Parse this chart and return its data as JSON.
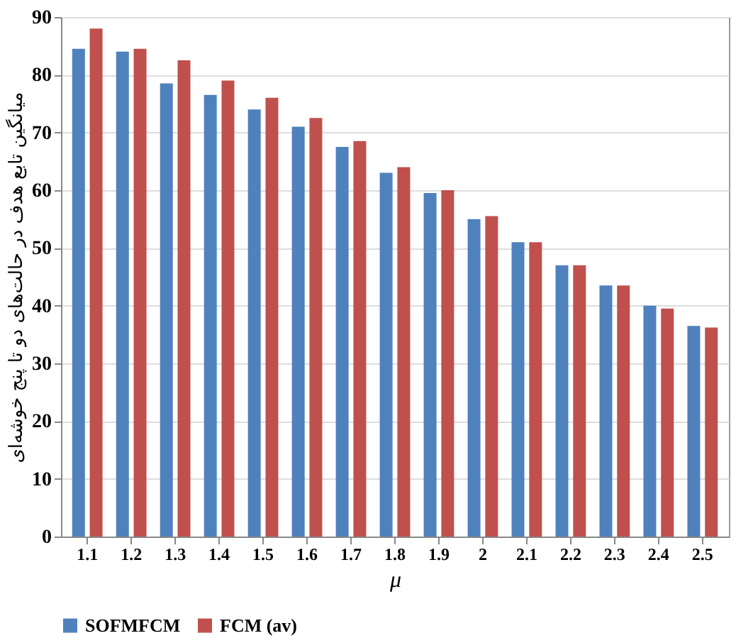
{
  "chart_data": {
    "type": "bar",
    "xlabel": "μ",
    "ylabel": "میانگین تابع هدف در حالت‌های دو تا پنج خوشه‌ای",
    "categories": [
      "1.1",
      "1.2",
      "1.3",
      "1.4",
      "1.5",
      "1.6",
      "1.7",
      "1.8",
      "1.9",
      "2",
      "2.1",
      "2.2",
      "2.3",
      "2.4",
      "2.5"
    ],
    "series": [
      {
        "name": "SOFMFCM",
        "color": "#4f81bd",
        "values": [
          84.5,
          84,
          78.5,
          76.5,
          74,
          71,
          67.5,
          63,
          59.5,
          55,
          51,
          47,
          43.5,
          40,
          36.5
        ]
      },
      {
        "name": "FCM (av)",
        "color": "#c0504d",
        "values": [
          88,
          84.5,
          82.5,
          79,
          76,
          72.5,
          68.5,
          64,
          60,
          55.5,
          51,
          47,
          43.5,
          39.5,
          36.2
        ]
      }
    ],
    "ylim": [
      0,
      90
    ],
    "yticks": [
      0,
      10,
      20,
      30,
      40,
      50,
      60,
      70,
      80,
      90
    ],
    "grid": "y",
    "legend": "bottom"
  }
}
